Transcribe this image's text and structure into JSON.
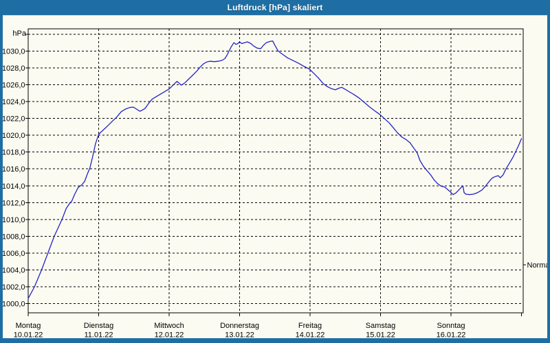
{
  "window": {
    "title": "Luftdruck [hPa] skaliert"
  },
  "colors": {
    "frame": "#1E6EA4",
    "titlebar_text": "#FFFFFF",
    "panel_bg": "#FBFBF2",
    "grid": "#000000",
    "curve": "#2222C4",
    "text": "#000000"
  },
  "chart_data": {
    "type": "line",
    "title": "Luftdruck [hPa] skaliert",
    "unit_label": "hPa",
    "ylabel": "hPa",
    "xlabel": "",
    "grid": true,
    "ylim": [
      998.9,
      1032.65
    ],
    "x_days": 7,
    "days": [
      {
        "name": "Montag",
        "date": "10.01.22"
      },
      {
        "name": "Dienstag",
        "date": "11.01.22"
      },
      {
        "name": "Mittwoch",
        "date": "12.01.22"
      },
      {
        "name": "Donnerstag",
        "date": "13.01.22"
      },
      {
        "name": "Freitag",
        "date": "14.01.22"
      },
      {
        "name": "Samstag",
        "date": "15.01.22"
      },
      {
        "name": "Sonntag",
        "date": "16.01.22"
      }
    ],
    "yticks": [
      {
        "v": 1000,
        "label": "1000,0"
      },
      {
        "v": 1002,
        "label": "1002,0"
      },
      {
        "v": 1004,
        "label": "1004,0"
      },
      {
        "v": 1006,
        "label": "1006,0"
      },
      {
        "v": 1008,
        "label": "1008,0"
      },
      {
        "v": 1010,
        "label": "1010,0"
      },
      {
        "v": 1012,
        "label": "1012,0"
      },
      {
        "v": 1014,
        "label": "1014,0"
      },
      {
        "v": 1016,
        "label": "1016,0"
      },
      {
        "v": 1018,
        "label": "1018,0"
      },
      {
        "v": 1020,
        "label": "1020,0"
      },
      {
        "v": 1022,
        "label": "1022,0"
      },
      {
        "v": 1024,
        "label": "1024,0"
      },
      {
        "v": 1026,
        "label": "1026,0"
      },
      {
        "v": 1028,
        "label": "1028,0"
      },
      {
        "v": 1030,
        "label": "1030,0"
      }
    ],
    "ytick_top_line": 1032,
    "normal_marker": {
      "label": "Normal",
      "value": 1004.6
    },
    "series": [
      {
        "name": "Luftdruck",
        "color": "#2222C4",
        "points": [
          [
            0.0,
            1000.6
          ],
          [
            0.09,
            1002.0
          ],
          [
            0.19,
            1004.0
          ],
          [
            0.28,
            1006.0
          ],
          [
            0.37,
            1008.0
          ],
          [
            0.43,
            1009.1
          ],
          [
            0.48,
            1010.0
          ],
          [
            0.54,
            1011.3
          ],
          [
            0.58,
            1011.8
          ],
          [
            0.62,
            1012.2
          ],
          [
            0.66,
            1013.0
          ],
          [
            0.71,
            1013.8
          ],
          [
            0.76,
            1014.1
          ],
          [
            0.8,
            1014.5
          ],
          [
            0.84,
            1015.4
          ],
          [
            0.875,
            1016.1
          ],
          [
            0.91,
            1017.3
          ],
          [
            0.93,
            1018.0
          ],
          [
            0.955,
            1019.0
          ],
          [
            1.0,
            1020.1
          ],
          [
            1.05,
            1020.5
          ],
          [
            1.1,
            1020.9
          ],
          [
            1.15,
            1021.3
          ],
          [
            1.21,
            1021.8
          ],
          [
            1.26,
            1022.2
          ],
          [
            1.32,
            1022.8
          ],
          [
            1.38,
            1023.1
          ],
          [
            1.44,
            1023.3
          ],
          [
            1.49,
            1023.35
          ],
          [
            1.53,
            1023.15
          ],
          [
            1.585,
            1022.85
          ],
          [
            1.62,
            1023.0
          ],
          [
            1.66,
            1023.2
          ],
          [
            1.71,
            1023.8
          ],
          [
            1.76,
            1024.3
          ],
          [
            1.82,
            1024.6
          ],
          [
            1.88,
            1024.9
          ],
          [
            1.94,
            1025.2
          ],
          [
            2.0,
            1025.5
          ],
          [
            2.05,
            1025.9
          ],
          [
            2.11,
            1026.4
          ],
          [
            2.14,
            1026.2
          ],
          [
            2.17,
            1025.95
          ],
          [
            2.22,
            1026.2
          ],
          [
            2.28,
            1026.7
          ],
          [
            2.33,
            1027.1
          ],
          [
            2.39,
            1027.6
          ],
          [
            2.44,
            1028.1
          ],
          [
            2.49,
            1028.5
          ],
          [
            2.53,
            1028.7
          ],
          [
            2.58,
            1028.8
          ],
          [
            2.64,
            1028.75
          ],
          [
            2.7,
            1028.8
          ],
          [
            2.75,
            1028.9
          ],
          [
            2.79,
            1029.1
          ],
          [
            2.82,
            1029.5
          ],
          [
            2.85,
            1030.0
          ],
          [
            2.88,
            1030.5
          ],
          [
            2.92,
            1031.0
          ],
          [
            2.95,
            1030.8
          ],
          [
            2.975,
            1030.9
          ],
          [
            3.0,
            1031.1
          ],
          [
            3.03,
            1030.9
          ],
          [
            3.07,
            1031.0
          ],
          [
            3.11,
            1031.1
          ],
          [
            3.16,
            1030.9
          ],
          [
            3.2,
            1030.6
          ],
          [
            3.25,
            1030.35
          ],
          [
            3.3,
            1030.3
          ],
          [
            3.34,
            1030.7
          ],
          [
            3.38,
            1031.0
          ],
          [
            3.43,
            1031.15
          ],
          [
            3.47,
            1031.2
          ],
          [
            3.5,
            1030.7
          ],
          [
            3.54,
            1030.1
          ],
          [
            3.58,
            1029.8
          ],
          [
            3.63,
            1029.5
          ],
          [
            3.68,
            1029.2
          ],
          [
            3.73,
            1029.0
          ],
          [
            3.79,
            1028.75
          ],
          [
            3.85,
            1028.5
          ],
          [
            3.91,
            1028.2
          ],
          [
            3.96,
            1028.0
          ],
          [
            4.0,
            1027.8
          ],
          [
            4.06,
            1027.3
          ],
          [
            4.12,
            1026.8
          ],
          [
            4.18,
            1026.2
          ],
          [
            4.24,
            1025.8
          ],
          [
            4.3,
            1025.55
          ],
          [
            4.36,
            1025.4
          ],
          [
            4.41,
            1025.6
          ],
          [
            4.45,
            1025.7
          ],
          [
            4.5,
            1025.45
          ],
          [
            4.56,
            1025.15
          ],
          [
            4.63,
            1024.8
          ],
          [
            4.7,
            1024.4
          ],
          [
            4.77,
            1023.9
          ],
          [
            4.84,
            1023.4
          ],
          [
            4.91,
            1022.95
          ],
          [
            4.96,
            1022.65
          ],
          [
            5.0,
            1022.4
          ],
          [
            5.06,
            1021.95
          ],
          [
            5.12,
            1021.5
          ],
          [
            5.18,
            1020.9
          ],
          [
            5.24,
            1020.3
          ],
          [
            5.3,
            1019.8
          ],
          [
            5.36,
            1019.5
          ],
          [
            5.42,
            1019.1
          ],
          [
            5.47,
            1018.5
          ],
          [
            5.52,
            1017.9
          ],
          [
            5.56,
            1017.0
          ],
          [
            5.61,
            1016.3
          ],
          [
            5.66,
            1015.8
          ],
          [
            5.71,
            1015.3
          ],
          [
            5.76,
            1014.7
          ],
          [
            5.81,
            1014.25
          ],
          [
            5.86,
            1013.95
          ],
          [
            5.91,
            1013.85
          ],
          [
            5.96,
            1013.5
          ],
          [
            6.0,
            1013.2
          ],
          [
            6.03,
            1012.95
          ],
          [
            6.07,
            1013.15
          ],
          [
            6.11,
            1013.5
          ],
          [
            6.15,
            1013.85
          ],
          [
            6.17,
            1013.95
          ],
          [
            6.185,
            1013.2
          ],
          [
            6.21,
            1013.0
          ],
          [
            6.26,
            1012.95
          ],
          [
            6.32,
            1013.0
          ],
          [
            6.38,
            1013.2
          ],
          [
            6.44,
            1013.5
          ],
          [
            6.49,
            1013.95
          ],
          [
            6.54,
            1014.5
          ],
          [
            6.59,
            1014.95
          ],
          [
            6.63,
            1015.1
          ],
          [
            6.67,
            1015.2
          ],
          [
            6.7,
            1014.95
          ],
          [
            6.74,
            1015.3
          ],
          [
            6.78,
            1016.0
          ],
          [
            6.83,
            1016.7
          ],
          [
            6.88,
            1017.4
          ],
          [
            6.92,
            1018.1
          ],
          [
            6.96,
            1018.8
          ],
          [
            7.0,
            1019.6
          ]
        ]
      }
    ]
  }
}
